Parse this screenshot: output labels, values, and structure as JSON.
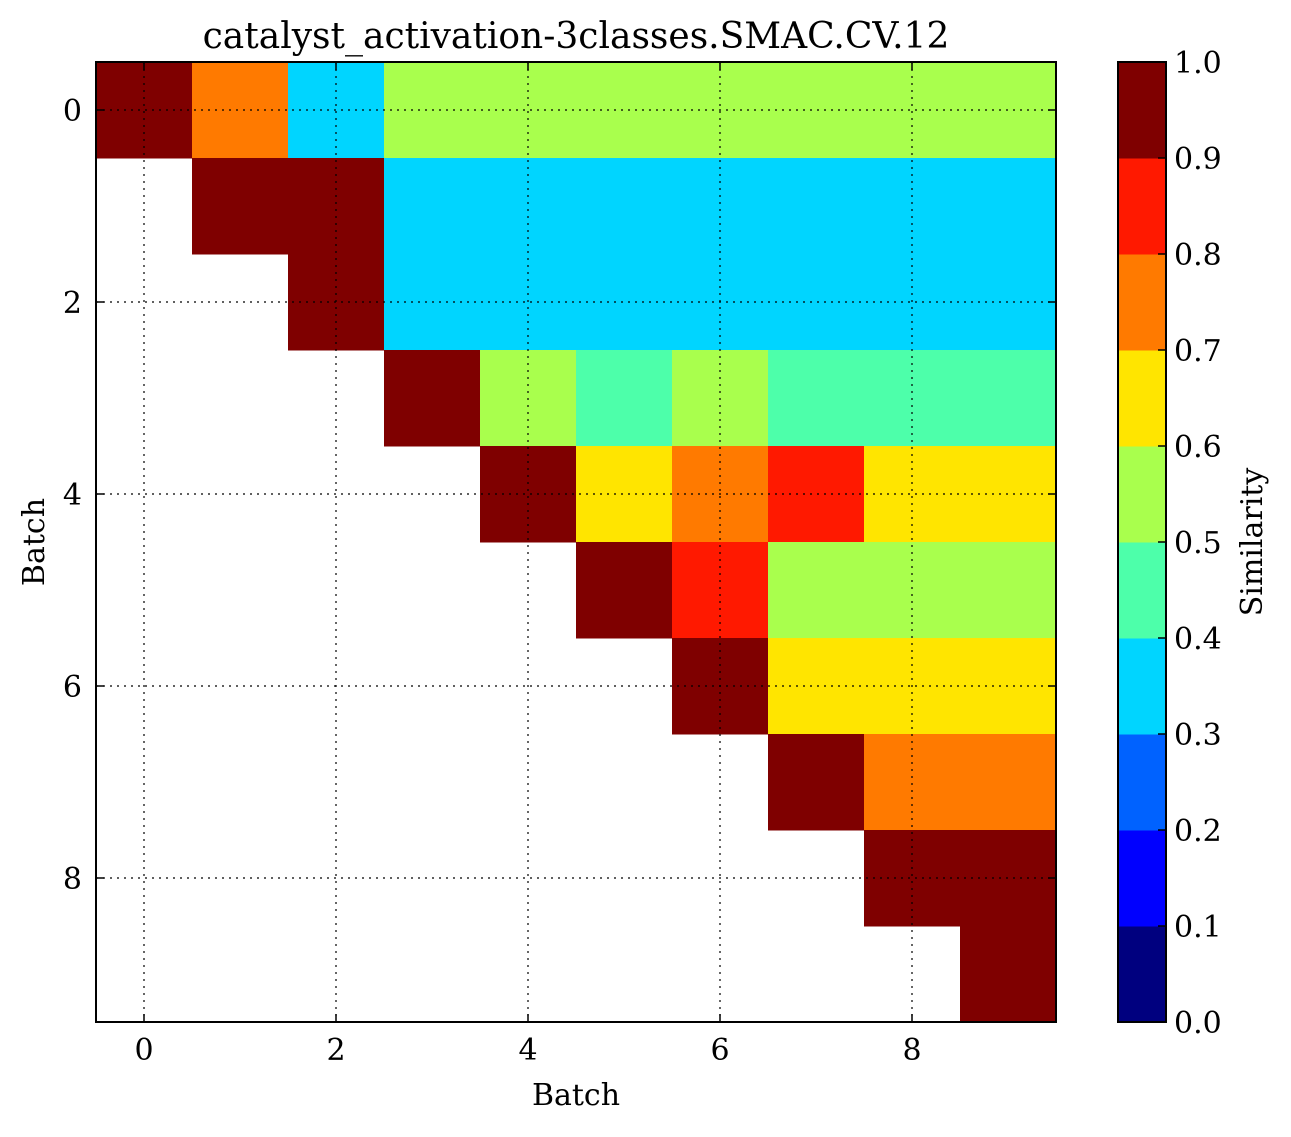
{
  "chart_data": {
    "type": "heatmap",
    "title": "catalyst_activation-3classes.SMAC.CV.12",
    "xlabel": "Batch",
    "ylabel": "Batch",
    "x_ticks": [
      "0",
      "2",
      "4",
      "6",
      "8"
    ],
    "y_ticks": [
      "0",
      "2",
      "4",
      "6",
      "8"
    ],
    "xlim": [
      -0.5,
      9.5
    ],
    "ylim": [
      9.5,
      -0.5
    ],
    "grid": true,
    "grid_style": "dotted",
    "colorbar": {
      "label": "Similarity",
      "range": [
        0.0,
        1.0
      ],
      "ticks": [
        "0.0",
        "0.1",
        "0.2",
        "0.3",
        "0.4",
        "0.5",
        "0.6",
        "0.7",
        "0.8",
        "0.9",
        "1.0"
      ],
      "colors": [
        "#00007f",
        "#0000ff",
        "#0062ff",
        "#00d5ff",
        "#4dffaa",
        "#a9ff4d",
        "#ffe500",
        "#ff7a00",
        "#ff1900",
        "#7f0000"
      ]
    },
    "matrix": [
      [
        0.95,
        0.75,
        0.35,
        0.55,
        0.55,
        0.55,
        0.55,
        0.55,
        0.55,
        0.55
      ],
      [
        null,
        0.95,
        0.95,
        0.35,
        0.35,
        0.35,
        0.35,
        0.35,
        0.35,
        0.35
      ],
      [
        null,
        null,
        0.95,
        0.35,
        0.35,
        0.35,
        0.35,
        0.35,
        0.35,
        0.35
      ],
      [
        null,
        null,
        null,
        0.95,
        0.55,
        0.45,
        0.55,
        0.45,
        0.45,
        0.45
      ],
      [
        null,
        null,
        null,
        null,
        0.95,
        0.65,
        0.75,
        0.85,
        0.65,
        0.65
      ],
      [
        null,
        null,
        null,
        null,
        null,
        0.95,
        0.85,
        0.55,
        0.55,
        0.55
      ],
      [
        null,
        null,
        null,
        null,
        null,
        null,
        0.95,
        0.65,
        0.65,
        0.65
      ],
      [
        null,
        null,
        null,
        null,
        null,
        null,
        null,
        0.95,
        0.75,
        0.75
      ],
      [
        null,
        null,
        null,
        null,
        null,
        null,
        null,
        null,
        0.95,
        0.95
      ],
      [
        null,
        null,
        null,
        null,
        null,
        null,
        null,
        null,
        null,
        0.95
      ]
    ]
  }
}
